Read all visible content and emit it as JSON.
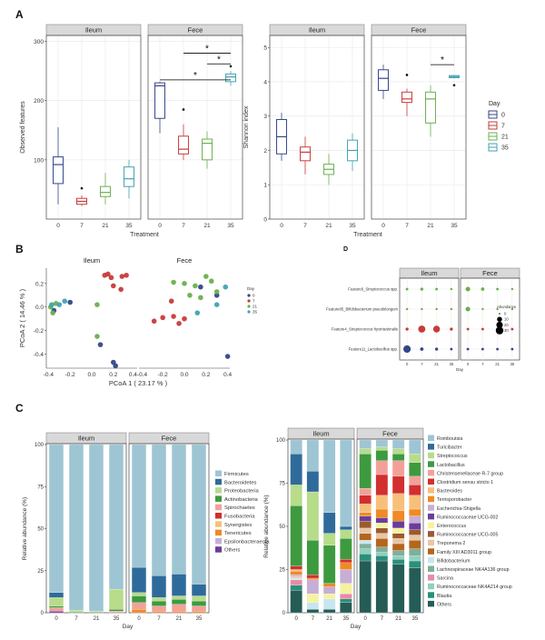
{
  "panel_labels": [
    "A",
    "B",
    "C",
    "D"
  ],
  "colors": {
    "day0": "#34468a",
    "day7": "#c93a3a",
    "day21": "#6ab04c",
    "day35": "#41a3b3",
    "strip": "#d9d9d9",
    "grid": "#e8e8e8",
    "sig": "#000000"
  },
  "chart_data": [
    {
      "id": "A1",
      "type": "boxplot",
      "title": "",
      "xlabel": "Treatment",
      "ylabel": "Observed features",
      "facets": [
        "Ileum",
        "Fece"
      ],
      "categories": [
        "0",
        "7",
        "21",
        "35"
      ],
      "ylim": [
        0,
        310
      ],
      "yticks": [
        100,
        200,
        300
      ],
      "boxes": {
        "Ileum": [
          {
            "min": 25,
            "q1": 60,
            "med": 92,
            "q3": 105,
            "max": 155,
            "out": []
          },
          {
            "min": 22,
            "q1": 25,
            "med": 30,
            "q3": 35,
            "max": 40,
            "out": [
              52
            ]
          },
          {
            "min": 25,
            "q1": 38,
            "med": 45,
            "q3": 55,
            "max": 78,
            "out": []
          },
          {
            "min": 35,
            "q1": 55,
            "med": 68,
            "q3": 88,
            "max": 100,
            "out": []
          }
        ],
        "Fece": [
          {
            "min": 145,
            "q1": 170,
            "med": 225,
            "q3": 230,
            "max": 232,
            "out": []
          },
          {
            "min": 100,
            "q1": 110,
            "med": 118,
            "q3": 140,
            "max": 160,
            "out": [
              185
            ]
          },
          {
            "min": 85,
            "q1": 100,
            "med": 128,
            "q3": 135,
            "max": 148,
            "out": []
          },
          {
            "min": 225,
            "q1": 232,
            "med": 240,
            "q3": 245,
            "max": 250,
            "out": [
              258
            ]
          }
        ]
      },
      "significance": [
        {
          "facet": "Fece",
          "from": "0",
          "to": "35",
          "label": "*",
          "y": 235
        },
        {
          "facet": "Fece",
          "from": "7",
          "to": "35",
          "label": "*",
          "y": 280
        },
        {
          "facet": "Fece",
          "from": "21",
          "to": "35",
          "label": "*",
          "y": 262
        }
      ]
    },
    {
      "id": "A2",
      "type": "boxplot",
      "title": "",
      "xlabel": "Treatment",
      "ylabel": "Shannon index",
      "facets": [
        "Ileum",
        "Fece"
      ],
      "categories": [
        "0",
        "7",
        "21",
        "35"
      ],
      "ylim": [
        0,
        5.35
      ],
      "yticks": [
        0,
        1,
        2,
        3,
        4,
        5
      ],
      "boxes": {
        "Ileum": [
          {
            "min": 1.7,
            "q1": 1.9,
            "med": 2.4,
            "q3": 2.9,
            "max": 3.1,
            "out": []
          },
          {
            "min": 1.3,
            "q1": 1.7,
            "med": 1.95,
            "q3": 2.1,
            "max": 2.4,
            "out": []
          },
          {
            "min": 1.0,
            "q1": 1.3,
            "med": 1.45,
            "q3": 1.6,
            "max": 1.9,
            "out": []
          },
          {
            "min": 1.4,
            "q1": 1.7,
            "med": 2.0,
            "q3": 2.3,
            "max": 2.5,
            "out": []
          }
        ],
        "Fece": [
          {
            "min": 3.5,
            "q1": 3.75,
            "med": 4.1,
            "q3": 4.35,
            "max": 4.5,
            "out": []
          },
          {
            "min": 3.0,
            "q1": 3.4,
            "med": 3.5,
            "q3": 3.7,
            "max": 3.8,
            "out": [
              4.2
            ]
          },
          {
            "min": 2.4,
            "q1": 2.8,
            "med": 3.5,
            "q3": 3.7,
            "max": 3.9,
            "out": []
          },
          {
            "min": 4.1,
            "q1": 4.12,
            "med": 4.15,
            "q3": 4.18,
            "max": 4.2,
            "out": [
              3.9
            ]
          }
        ]
      },
      "significance": [
        {
          "facet": "Fece",
          "from": "21",
          "to": "35",
          "label": "*",
          "y": 4.5
        }
      ],
      "legend": {
        "title": "Day",
        "entries": [
          "0",
          "7",
          "21",
          "35"
        ],
        "placement": "right"
      }
    },
    {
      "id": "B",
      "type": "scatter",
      "title": "",
      "xlabel": "PCoA 1 ( 23.17 % )",
      "ylabel": "PCoA 2 ( 14.46 % )",
      "facets": [
        "Ileum",
        "Fece"
      ],
      "xlim": [
        -0.42,
        0.42
      ],
      "ylim": [
        -0.52,
        0.33
      ],
      "xticks": [
        -0.4,
        -0.2,
        0.0,
        0.2,
        0.4
      ],
      "xtick_labels_ileum": [
        "-0.4",
        "-0.2",
        "0.0",
        "0.2"
      ],
      "xtick_labels_fece": [
        "0.4-0.4",
        "-0.2",
        "0.0",
        "0.2",
        "0.4"
      ],
      "yticks": [
        -0.4,
        -0.2,
        0.0,
        0.2
      ],
      "legend": {
        "title": "Day",
        "entries": [
          "0",
          "7",
          "21",
          "35"
        ],
        "placement": "right"
      },
      "points": {
        "Ileum": [
          {
            "x": -0.35,
            "y": -0.03,
            "day": "0"
          },
          {
            "x": -0.2,
            "y": 0.04,
            "day": "0"
          },
          {
            "x": 0.2,
            "y": -0.47,
            "day": "0"
          },
          {
            "x": 0.22,
            "y": -0.5,
            "day": "0"
          },
          {
            "x": 0.08,
            "y": -0.32,
            "day": "0"
          },
          {
            "x": 0.12,
            "y": 0.27,
            "day": "7"
          },
          {
            "x": 0.15,
            "y": 0.28,
            "day": "7"
          },
          {
            "x": 0.18,
            "y": 0.25,
            "day": "7"
          },
          {
            "x": 0.28,
            "y": 0.26,
            "day": "7"
          },
          {
            "x": 0.32,
            "y": 0.27,
            "day": "7"
          },
          {
            "x": 0.27,
            "y": 0.15,
            "day": "7"
          },
          {
            "x": 0.2,
            "y": 0.18,
            "day": "7"
          },
          {
            "x": -0.38,
            "y": 0.0,
            "day": "21"
          },
          {
            "x": -0.36,
            "y": -0.05,
            "day": "21"
          },
          {
            "x": -0.33,
            "y": 0.03,
            "day": "21"
          },
          {
            "x": 0.05,
            "y": -0.25,
            "day": "21"
          },
          {
            "x": 0.05,
            "y": 0.02,
            "day": "21"
          },
          {
            "x": -0.37,
            "y": 0.02,
            "day": "35"
          },
          {
            "x": -0.3,
            "y": 0.02,
            "day": "35"
          },
          {
            "x": -0.25,
            "y": 0.05,
            "day": "35"
          }
        ],
        "Fece": [
          {
            "x": 0.15,
            "y": 0.17,
            "day": "0"
          },
          {
            "x": 0.3,
            "y": 0.1,
            "day": "0"
          },
          {
            "x": 0.4,
            "y": -0.42,
            "day": "0"
          },
          {
            "x": -0.28,
            "y": -0.12,
            "day": "7"
          },
          {
            "x": -0.2,
            "y": -0.09,
            "day": "7"
          },
          {
            "x": -0.1,
            "y": -0.08,
            "day": "7"
          },
          {
            "x": -0.05,
            "y": -0.14,
            "day": "7"
          },
          {
            "x": 0.0,
            "y": -0.1,
            "day": "7"
          },
          {
            "x": -0.12,
            "y": 0.05,
            "day": "7"
          },
          {
            "x": -0.1,
            "y": 0.21,
            "day": "21"
          },
          {
            "x": 0.0,
            "y": 0.2,
            "day": "21"
          },
          {
            "x": 0.1,
            "y": 0.18,
            "day": "21"
          },
          {
            "x": 0.2,
            "y": 0.26,
            "day": "21"
          },
          {
            "x": 0.25,
            "y": 0.22,
            "day": "21"
          },
          {
            "x": 0.05,
            "y": 0.1,
            "day": "21"
          },
          {
            "x": 0.15,
            "y": 0.08,
            "day": "21"
          },
          {
            "x": 0.3,
            "y": 0.13,
            "day": "21"
          },
          {
            "x": 0.38,
            "y": 0.17,
            "day": "35"
          },
          {
            "x": 0.3,
            "y": 0.02,
            "day": "35"
          },
          {
            "x": 0.12,
            "y": -0.05,
            "day": "35"
          }
        ]
      }
    },
    {
      "id": "D",
      "type": "dotplot",
      "title": "",
      "xlabel": "Day",
      "facets": [
        "Ileum",
        "Fece"
      ],
      "categories": [
        "0",
        "7",
        "21",
        "35"
      ],
      "features": [
        "Feature6_Streptococcus spp.",
        "Feature85_Bifidobacterium pseudolongum",
        "Feature4_Streptococcus hyointestinalis",
        "Feature11_Lactobacillus spp."
      ],
      "legend": {
        "title": "Abundance",
        "entries": [
          "0",
          "10",
          "20",
          "30"
        ],
        "placement": "right"
      },
      "values": {
        "Ileum": [
          [
            1,
            2,
            1,
            0.5
          ],
          [
            0.5,
            0.5,
            0.5,
            0.5
          ],
          [
            2,
            25,
            22,
            2
          ],
          [
            28,
            3,
            2,
            1
          ]
        ],
        "Fece": [
          [
            8,
            3,
            1,
            0.5
          ],
          [
            8,
            0.5,
            0.5,
            0.5
          ],
          [
            1,
            1,
            1,
            1
          ],
          [
            1,
            1,
            1,
            1
          ]
        ]
      },
      "colors_by_feature": [
        "#6ab04c",
        "#6ab04c",
        "#c93a3a",
        "#34468a"
      ]
    },
    {
      "id": "C1",
      "type": "stacked-bar",
      "title": "",
      "xlabel": "Day",
      "ylabel": "Relative abundance (%)",
      "facets": [
        "Ileum",
        "Fece"
      ],
      "categories": [
        "0",
        "7",
        "21",
        "35"
      ],
      "yticks": [
        0,
        25,
        50,
        75,
        100
      ],
      "legend_order": [
        "Firmicutes",
        "Bacteroidetes",
        "Proteobacteria",
        "Actinobacteria",
        "Spirochaetes",
        "Fusobacteria",
        "Synergistes",
        "Tenericutes",
        "Epsilonbacteraeota",
        "Others"
      ],
      "series_colors": [
        "#9ec5d4",
        "#2f6b9a",
        "#b7dc8a",
        "#3e9a3e",
        "#f4a09a",
        "#d22f2f",
        "#f7c07a",
        "#f08a24",
        "#c6aed6",
        "#6a3d9a"
      ],
      "bottom_up_order": [
        "Others",
        "Epsilonbacteraeota",
        "Tenericutes",
        "Synergistes",
        "Fusobacteria",
        "Spirochaetes",
        "Actinobacteria",
        "Proteobacteria",
        "Bacteroidetes",
        "Firmicutes"
      ],
      "values": {
        "Ileum": [
          {
            "Bacteroidetes": 3,
            "Proteobacteria": 5,
            "Actinobacteria": 1,
            "Spirochaetes": 2,
            "Others": 1,
            "Firmicutes": 88
          },
          {
            "Proteobacteria": 1,
            "Actinobacteria": 0.5,
            "Firmicutes": 98.5
          },
          {
            "Proteobacteria": 0.5,
            "Actinobacteria": 0.5,
            "Firmicutes": 99
          },
          {
            "Proteobacteria": 12,
            "Actinobacteria": 1,
            "Spirochaetes": 1,
            "Firmicutes": 86
          }
        ],
        "Fece": [
          {
            "Tenericutes": 2,
            "Spirochaetes": 4,
            "Actinobacteria": 4,
            "Proteobacteria": 2,
            "Bacteroidetes": 15,
            "Firmicutes": 73
          },
          {
            "Tenericutes": 1,
            "Spirochaetes": 3,
            "Actinobacteria": 3,
            "Proteobacteria": 2,
            "Bacteroidetes": 13,
            "Firmicutes": 78
          },
          {
            "Tenericutes": 1,
            "Spirochaetes": 4,
            "Actinobacteria": 3,
            "Proteobacteria": 2,
            "Bacteroidetes": 13,
            "Firmicutes": 77
          },
          {
            "Tenericutes": 1,
            "Spirochaetes": 3,
            "Actinobacteria": 3,
            "Proteobacteria": 3,
            "Bacteroidetes": 7,
            "Firmicutes": 83
          }
        ]
      }
    },
    {
      "id": "C2",
      "type": "stacked-bar",
      "title": "",
      "xlabel": "Day",
      "ylabel": "Relative abundance (%)",
      "facets": [
        "Ileum",
        "Fece"
      ],
      "categories": [
        "0",
        "7",
        "21",
        "35"
      ],
      "yticks": [
        0,
        25,
        50,
        75,
        100
      ],
      "legend_order": [
        "Romboutsia",
        "Turicibacter",
        "Streptococcus",
        "Lactobacillus",
        "Christensenellaceae R-7 group",
        "Clostridium sensu stricto 1",
        "Bacteroides",
        "Terrisporobacter",
        "Escherichia-Shigella",
        "Ruminococcaceae UCG-002",
        "Enterococcus",
        "Ruminococcaceae UCG-005",
        "Treponema 2",
        "Family XIII AD3011 group",
        "Bifidobacterium",
        "Lachnospiraceae NK4A136 group",
        "Sarcina",
        "Ruminococcaceae NK4A214 group",
        "Blautia",
        "Others"
      ],
      "series_colors": [
        "#9ec5d4",
        "#2f6b9a",
        "#b7dc8a",
        "#3e9a3e",
        "#f4a09a",
        "#d22f2f",
        "#f7c07a",
        "#f08a24",
        "#c6aed6",
        "#6a3d9a",
        "#f6f2a0",
        "#9c5b2c",
        "#e8c7a6",
        "#b5651d",
        "#c8e6f0",
        "#7faf9a",
        "#e88aa9",
        "#8fd0c0",
        "#2b8f7a",
        "#255c56"
      ],
      "values": {
        "Ileum": [
          {
            "Others": 13,
            "Blautia": 3,
            "Sarcina": 3,
            "Bifidobacterium": 1,
            "Treponema 2": 1,
            "Escherichia-Shigella": 1,
            "Terrisporobacter": 2,
            "Bacteroides": 1,
            "Clostridium sensu stricto 1": 2,
            "Lactobacillus": 35,
            "Streptococcus": 12,
            "Turicibacter": 18,
            "Romboutsia": 8
          },
          {
            "Others": 2,
            "Enterococcus": 5,
            "Bifidobacterium": 4,
            "Escherichia-Shigella": 8,
            "Terrisporobacter": 1,
            "Clostridium sensu stricto 1": 2,
            "Lactobacillus": 20,
            "Streptococcus": 28,
            "Turicibacter": 12,
            "Romboutsia": 18
          },
          {
            "Others": 2,
            "Enterococcus": 3,
            "Bifidobacterium": 6,
            "Escherichia-Shigella": 4,
            "Terrisporobacter": 2,
            "Lactobacillus": 22,
            "Streptococcus": 7,
            "Turicibacter": 12,
            "Romboutsia": 42
          },
          {
            "Others": 6,
            "Blautia": 2,
            "Sarcina": 3,
            "Enterococcus": 6,
            "Escherichia-Shigella": 8,
            "Terrisporobacter": 4,
            "Clostridium sensu stricto 1": 2,
            "Lactobacillus": 12,
            "Streptococcus": 5,
            "Turicibacter": 2,
            "Romboutsia": 50
          }
        ],
        "Fece": [
          {
            "Others": 30,
            "Blautia": 4,
            "Ruminococcaceae NK4A214 group": 3,
            "Lachnospiraceae NK4A136 group": 3,
            "Bifidobacterium": 2,
            "Family XIII AD3011 group": 4,
            "Treponema 2": 3,
            "Ruminococcaceae UCG-005": 4,
            "Ruminococcaceae UCG-002": 3,
            "Terrisporobacter": 2,
            "Bacteroides": 5,
            "Clostridium sensu stricto 1": 5,
            "Christensenellaceae R-7 group": 4,
            "Lactobacillus": 20,
            "Streptococcus": 3,
            "Turicibacter": 0,
            "Romboutsia": 5
          },
          {
            "Others": 30,
            "Blautia": 3,
            "Ruminococcaceae NK4A214 group": 2,
            "Lachnospiraceae NK4A136 group": 3,
            "Family XIII AD3011 group": 5,
            "Treponema 2": 3,
            "Ruminococcaceae UCG-005": 3,
            "Enterococcus": 3,
            "Ruminococcaceae UCG-002": 3,
            "Terrisporobacter": 5,
            "Bacteroides": 8,
            "Clostridium sensu stricto 1": 12,
            "Christensenellaceae R-7 group": 8,
            "Lactobacillus": 6,
            "Streptococcus": 2,
            "Romboutsia": 4
          },
          {
            "Others": 28,
            "Blautia": 3,
            "Ruminococcaceae NK4A214 group": 2,
            "Lachnospiraceae NK4A136 group": 3,
            "Family XIII AD3011 group": 4,
            "Treponema 2": 3,
            "Ruminococcaceae UCG-005": 3,
            "Enterococcus": 3,
            "Ruminococcaceae UCG-002": 4,
            "Terrisporobacter": 6,
            "Bacteroides": 10,
            "Clostridium sensu stricto 1": 10,
            "Christensenellaceae R-7 group": 9,
            "Lactobacillus": 4,
            "Streptococcus": 3,
            "Romboutsia": 5
          },
          {
            "Others": 26,
            "Blautia": 4,
            "Ruminococcaceae NK4A214 group": 3,
            "Lachnospiraceae NK4A136 group": 4,
            "Family XIII AD3011 group": 5,
            "Treponema 2": 3,
            "Ruminococcaceae UCG-005": 3,
            "Ruminococcaceae UCG-002": 4,
            "Escherichia-Shigella": 4,
            "Terrisporobacter": 4,
            "Bacteroides": 8,
            "Clostridium sensu stricto 1": 6,
            "Christensenellaceae R-7 group": 5,
            "Lactobacillus": 8,
            "Streptococcus": 5,
            "Romboutsia": 8
          }
        ]
      }
    }
  ]
}
